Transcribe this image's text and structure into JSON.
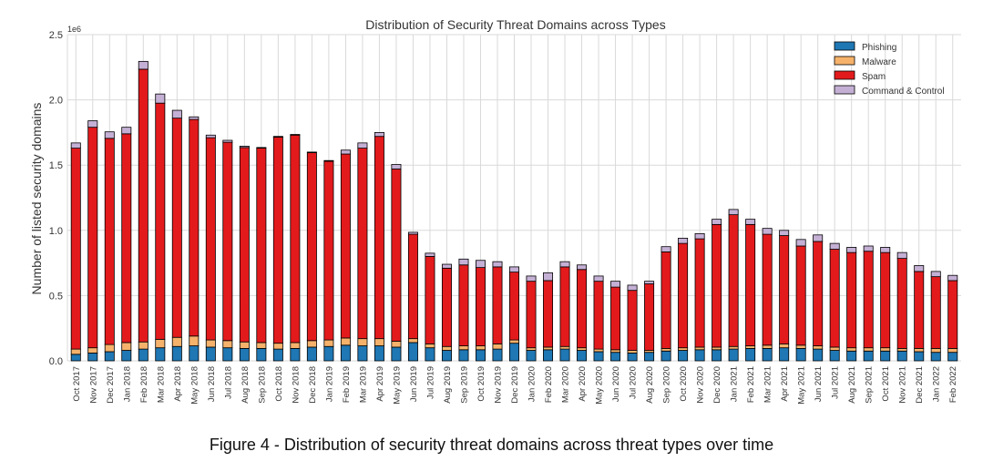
{
  "chart_data": {
    "type": "bar",
    "stacked": true,
    "title": "Distribution of Security Threat Domains across Types",
    "xlabel": "",
    "ylabel": "Number of listed security domains",
    "y_multiplier_label": "1e6",
    "ylim": [
      0,
      2500000
    ],
    "yticks": [
      0,
      500000,
      1000000,
      1500000,
      2000000,
      2500000
    ],
    "ytick_labels": [
      "0.0",
      "0.5",
      "1.0",
      "1.5",
      "2.0",
      "2.5"
    ],
    "grid": true,
    "legend_position": "top-right",
    "categories": [
      "Oct 2017",
      "Nov 2017",
      "Dec 2017",
      "Jan 2018",
      "Feb 2018",
      "Mar 2018",
      "Apr 2018",
      "May 2018",
      "Jun 2018",
      "Jul 2018",
      "Aug 2018",
      "Sep 2018",
      "Oct 2018",
      "Nov 2018",
      "Dec 2018",
      "Jan 2019",
      "Feb 2019",
      "Mar 2019",
      "Apr 2019",
      "May 2019",
      "Jun 2019",
      "Jul 2019",
      "Aug 2019",
      "Sep 2019",
      "Oct 2019",
      "Nov 2019",
      "Dec 2019",
      "Jan 2020",
      "Feb 2020",
      "Mar 2020",
      "Apr 2020",
      "May 2020",
      "Jun 2020",
      "Jul 2020",
      "Aug 2020",
      "Sep 2020",
      "Oct 2020",
      "Nov 2020",
      "Dec 2020",
      "Jan 2021",
      "Feb 2021",
      "Mar 2021",
      "Apr 2021",
      "May 2021",
      "Jun 2021",
      "Jul 2021",
      "Aug 2021",
      "Sep 2021",
      "Oct 2021",
      "Nov 2021",
      "Dec 2021",
      "Jan 2022",
      "Feb 2022"
    ],
    "series": [
      {
        "name": "Phishing",
        "color": "#1f77b4",
        "values": [
          50000,
          60000,
          70000,
          80000,
          90000,
          100000,
          110000,
          115000,
          105000,
          100000,
          95000,
          95000,
          90000,
          95000,
          105000,
          110000,
          120000,
          115000,
          115000,
          105000,
          140000,
          100000,
          80000,
          85000,
          85000,
          90000,
          135000,
          80000,
          85000,
          90000,
          80000,
          70000,
          65000,
          60000,
          65000,
          75000,
          80000,
          85000,
          85000,
          90000,
          95000,
          95000,
          100000,
          95000,
          90000,
          80000,
          75000,
          75000,
          75000,
          75000,
          70000,
          65000,
          65000
        ]
      },
      {
        "name": "Malware",
        "color": "#f6b26b",
        "values": [
          40000,
          40000,
          55000,
          60000,
          55000,
          65000,
          70000,
          75000,
          55000,
          55000,
          50000,
          45000,
          45000,
          45000,
          50000,
          50000,
          55000,
          55000,
          55000,
          45000,
          30000,
          30000,
          30000,
          30000,
          30000,
          40000,
          25000,
          20000,
          20000,
          20000,
          20000,
          20000,
          20000,
          20000,
          15000,
          20000,
          20000,
          20000,
          20000,
          20000,
          20000,
          25000,
          30000,
          25000,
          25000,
          25000,
          25000,
          25000,
          25000,
          20000,
          25000,
          30000,
          30000
        ]
      },
      {
        "name": "Spam",
        "color": "#e31a1c",
        "values": [
          1540000,
          1690000,
          1580000,
          1600000,
          2090000,
          1810000,
          1680000,
          1660000,
          1550000,
          1520000,
          1490000,
          1490000,
          1580000,
          1590000,
          1440000,
          1370000,
          1410000,
          1460000,
          1550000,
          1320000,
          800000,
          670000,
          600000,
          620000,
          600000,
          590000,
          520000,
          510000,
          510000,
          610000,
          600000,
          520000,
          480000,
          460000,
          510000,
          740000,
          800000,
          830000,
          940000,
          1010000,
          930000,
          850000,
          830000,
          760000,
          800000,
          750000,
          730000,
          740000,
          730000,
          690000,
          590000,
          550000,
          520000
        ]
      },
      {
        "name": "Command & Control",
        "color": "#c5b0d5",
        "values": [
          40000,
          50000,
          50000,
          50000,
          60000,
          70000,
          60000,
          20000,
          20000,
          15000,
          10000,
          5000,
          5000,
          5000,
          5000,
          5000,
          30000,
          40000,
          30000,
          35000,
          15000,
          25000,
          30000,
          45000,
          55000,
          40000,
          40000,
          40000,
          60000,
          40000,
          35000,
          40000,
          45000,
          40000,
          20000,
          40000,
          40000,
          40000,
          40000,
          40000,
          40000,
          45000,
          40000,
          50000,
          50000,
          45000,
          40000,
          40000,
          40000,
          45000,
          45000,
          40000,
          40000
        ]
      }
    ]
  },
  "caption": "Figure 4 - Distribution of security threat domains across threat types over time"
}
